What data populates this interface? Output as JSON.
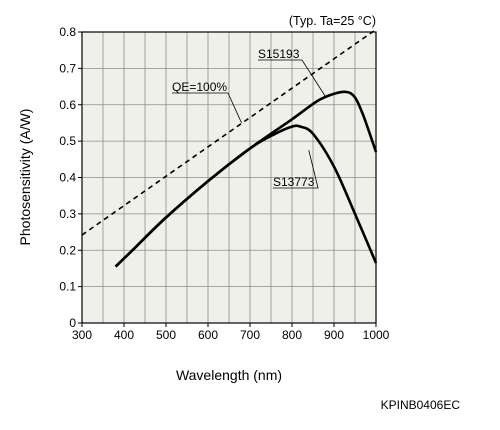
{
  "chart_data": {
    "type": "line",
    "condition_note": "(Typ. Ta=25 °C)",
    "xlabel": "Wavelength (nm)",
    "ylabel": "Photosensitivity (A/W)",
    "xlim": [
      300,
      1000
    ],
    "ylim": [
      0,
      0.8
    ],
    "x_ticks": [
      "300",
      "400",
      "500",
      "600",
      "700",
      "800",
      "900",
      "1000"
    ],
    "y_ticks": [
      "0",
      "0.1",
      "0.2",
      "0.3",
      "0.4",
      "0.5",
      "0.6",
      "0.7",
      "0.8"
    ],
    "grid": true,
    "series": [
      {
        "name": "S15193",
        "style": "solid",
        "x": [
          380,
          420,
          500,
          600,
          700,
          800,
          860,
          900,
          930,
          950,
          970,
          1000
        ],
        "y": [
          0.155,
          0.2,
          0.29,
          0.39,
          0.48,
          0.56,
          0.61,
          0.63,
          0.635,
          0.62,
          0.57,
          0.47
        ]
      },
      {
        "name": "S13773",
        "style": "solid",
        "x": [
          380,
          420,
          500,
          600,
          700,
          760,
          800,
          820,
          850,
          900,
          950,
          1000
        ],
        "y": [
          0.155,
          0.2,
          0.29,
          0.39,
          0.48,
          0.52,
          0.54,
          0.54,
          0.52,
          0.43,
          0.3,
          0.165
        ]
      },
      {
        "name": "QE=100%",
        "style": "dashed",
        "x": [
          300,
          1000
        ],
        "y": [
          0.242,
          0.807
        ]
      }
    ],
    "annotations": [
      {
        "text": "S15193",
        "series": "S15193"
      },
      {
        "text": "S13773",
        "series": "S13773"
      },
      {
        "text": "QE=100%",
        "series": "QE=100%"
      }
    ],
    "figure_code": "KPINB0406EC"
  }
}
